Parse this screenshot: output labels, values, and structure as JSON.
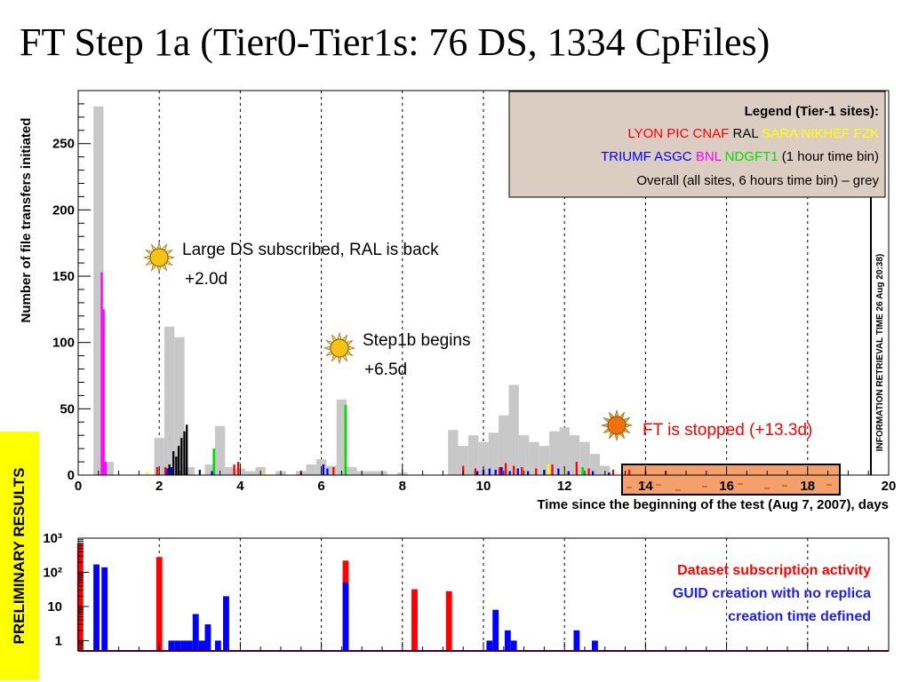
{
  "title": "FT Step 1a (Tier0-Tier1s: 76 DS, 1334 CpFiles)",
  "side_label": "PRELIMINARY RESULTS",
  "colors": {
    "lyon": "#ff0000",
    "pic": "#ff0000",
    "cnaf": "#ff0000",
    "ral": "#000000",
    "sara": "#ffff00",
    "nikhef": "#ffff00",
    "fzk": "#ffff00",
    "triumf": "#0000ff",
    "asgc": "#0000ff",
    "bnl": "#ff00ff",
    "ndgft1": "#00dd00",
    "overall": "#c8c8c8",
    "legend_bg": "#dccdc2",
    "box_fill": "#f4a06c"
  },
  "chart_data": [
    {
      "type": "bar",
      "ylabel": "Number of file transfers initiated",
      "xlabel": "Time since the beginning of the test (Aug 7, 2007), days",
      "xlim": [
        0,
        20
      ],
      "ylim": [
        0,
        290
      ],
      "x_ticks": [
        "0",
        "2",
        "4",
        "6",
        "8",
        "10",
        "12",
        "14",
        "16",
        "18",
        "20"
      ],
      "y_ticks": [
        "0",
        "50",
        "100",
        "150",
        "200",
        "250"
      ],
      "vertical_grid_x": [
        2,
        4,
        6,
        8,
        10,
        12,
        14,
        16,
        18
      ],
      "side_note": "INFORMATION RETRIEVAL TIME 26 Aug 20:38)",
      "legend": {
        "title": "Legend (Tier-1 sites):",
        "row1": [
          {
            "text": "LYON ",
            "color": "#ff0000"
          },
          {
            "text": "PIC ",
            "color": "#ff0000"
          },
          {
            "text": "CNAF ",
            "color": "#ff0000"
          },
          {
            "text": "RAL ",
            "color": "#000000"
          },
          {
            "text": "SARA ",
            "color": "#ffff00"
          },
          {
            "text": "NIKHEF ",
            "color": "#ffff00"
          },
          {
            "text": "FZK",
            "color": "#ffff00"
          }
        ],
        "row2": [
          {
            "text": "TRIUMF ",
            "color": "#0000ff"
          },
          {
            "text": "ASGC ",
            "color": "#0000ff"
          },
          {
            "text": "BNL ",
            "color": "#ff00ff"
          },
          {
            "text": "NDGFT1 ",
            "color": "#00dd00"
          },
          {
            "text": "(1 hour time bin)",
            "color": "#000000"
          }
        ],
        "row3": "Overall (all sites, 6 hours time bin) – grey"
      },
      "annotations": [
        {
          "line1": "Large DS subscribed, RAL is back",
          "line2": "+2.0d",
          "color": "#000000"
        },
        {
          "line1": "Step1b begins",
          "line2": "+6.5d",
          "color": "#000000"
        },
        {
          "line1": "FT is stopped (+13.3d)",
          "line2": "",
          "color": "#ff0000"
        }
      ],
      "highlight_range": [
        13.3,
        18.8
      ],
      "series": [
        {
          "name": "Overall (all sites, 6 hours time bin) – grey",
          "color": "#c8c8c8",
          "bin_width": 0.25,
          "x": [
            0.5,
            0.75,
            2.0,
            2.25,
            2.5,
            2.75,
            3.25,
            3.5,
            3.75,
            4.0,
            4.25,
            4.5,
            5.0,
            5.5,
            5.75,
            6.0,
            6.25,
            6.5,
            6.75,
            7.0,
            7.25,
            7.5,
            8.0,
            9.25,
            9.5,
            9.75,
            10.0,
            10.25,
            10.5,
            10.75,
            11.0,
            11.25,
            11.5,
            11.75,
            12.0,
            12.25,
            12.5,
            12.75,
            13.0
          ],
          "values": [
            278,
            10,
            28,
            112,
            104,
            6,
            8,
            37,
            6,
            5,
            3,
            6,
            3,
            3,
            8,
            12,
            7,
            57,
            6,
            3,
            3,
            3,
            2,
            34,
            22,
            30,
            25,
            32,
            45,
            68,
            30,
            25,
            22,
            33,
            36,
            30,
            25,
            16,
            7
          ]
        },
        {
          "name": "BNL",
          "color": "#ff00ff",
          "bin_width": 0.05,
          "x": [
            0.58,
            0.63,
            0.68
          ],
          "values": [
            153,
            125,
            10
          ]
        },
        {
          "name": "RAL",
          "color": "#000000",
          "bin_width": 0.05,
          "x": [
            2.25,
            2.35,
            2.42,
            2.48,
            2.55,
            2.62,
            2.68
          ],
          "values": [
            8,
            18,
            14,
            22,
            28,
            33,
            38
          ]
        },
        {
          "name": "NDGFT1",
          "color": "#00dd00",
          "bin_width": 0.06,
          "x": [
            3.35,
            6.6,
            12.45
          ],
          "values": [
            20,
            53,
            6
          ]
        },
        {
          "name": "LYON PIC CNAF",
          "color": "#ff0000",
          "bin_width": 0.05,
          "x": [
            1.95,
            2.15,
            3.85,
            3.95,
            5.5,
            6.3,
            9.5,
            9.8,
            10.4,
            10.55,
            10.75,
            10.95,
            11.3,
            11.7,
            12.3,
            12.6,
            13.2,
            13.6,
            14.0,
            14.5
          ],
          "values": [
            6,
            6,
            8,
            10,
            3,
            6,
            7,
            5,
            6,
            9,
            7,
            6,
            5,
            8,
            10,
            5,
            4,
            4,
            3,
            3
          ]
        },
        {
          "name": "TRIUMF ASGC",
          "color": "#0000ff",
          "bin_width": 0.05,
          "x": [
            2.2,
            2.3,
            3.0,
            3.3,
            6.05,
            6.15,
            9.85,
            10.0,
            10.15,
            10.3,
            10.45,
            10.65,
            10.85,
            11.1,
            11.5,
            11.85,
            12.1,
            12.7,
            13.1
          ],
          "values": [
            5,
            6,
            4,
            3,
            8,
            5,
            3,
            4,
            5,
            4,
            6,
            3,
            5,
            3,
            4,
            5,
            3,
            3,
            2
          ]
        },
        {
          "name": "SARA NIKHEF FZK",
          "color": "#ffff00",
          "bin_width": 0.05,
          "x": [
            1.7,
            4.6,
            11.6,
            12.0
          ],
          "values": [
            3,
            2,
            8,
            4
          ]
        }
      ]
    },
    {
      "type": "bar",
      "ylabel": "",
      "yscale": "log",
      "xlim": [
        0,
        20
      ],
      "ylim": [
        0.5,
        1000
      ],
      "y_ticks": [
        "1",
        "10",
        "10²",
        "10³"
      ],
      "vertical_grid_x": [
        2,
        4,
        6,
        8,
        10,
        12,
        14,
        16,
        18
      ],
      "legend_lines": [
        {
          "text": "Dataset subscription activity",
          "color": "#ff0000"
        },
        {
          "text": "GUID creation with no replica",
          "color": "#2020ee"
        },
        {
          "text": "creation time defined",
          "color": "#2020ee"
        }
      ],
      "series": [
        {
          "name": "Dataset subscription activity",
          "color": "#ff0000",
          "bin_width": 0.15,
          "x": [
            0.05,
            2.0,
            6.6,
            8.3,
            9.15
          ],
          "values": [
            700,
            280,
            220,
            32,
            28
          ]
        },
        {
          "name": "GUID creation with no replica creation time defined",
          "color": "#0000ff",
          "bin_width": 0.15,
          "x": [
            0.45,
            0.65,
            2.3,
            2.45,
            2.6,
            2.75,
            2.9,
            3.05,
            3.2,
            3.45,
            3.65,
            6.6,
            10.15,
            10.3,
            10.6,
            10.75,
            12.3,
            12.75
          ],
          "values": [
            170,
            140,
            1,
            1,
            1,
            1,
            6,
            1,
            3,
            1,
            20,
            50,
            1,
            8,
            2,
            1,
            2,
            1
          ]
        }
      ]
    }
  ]
}
